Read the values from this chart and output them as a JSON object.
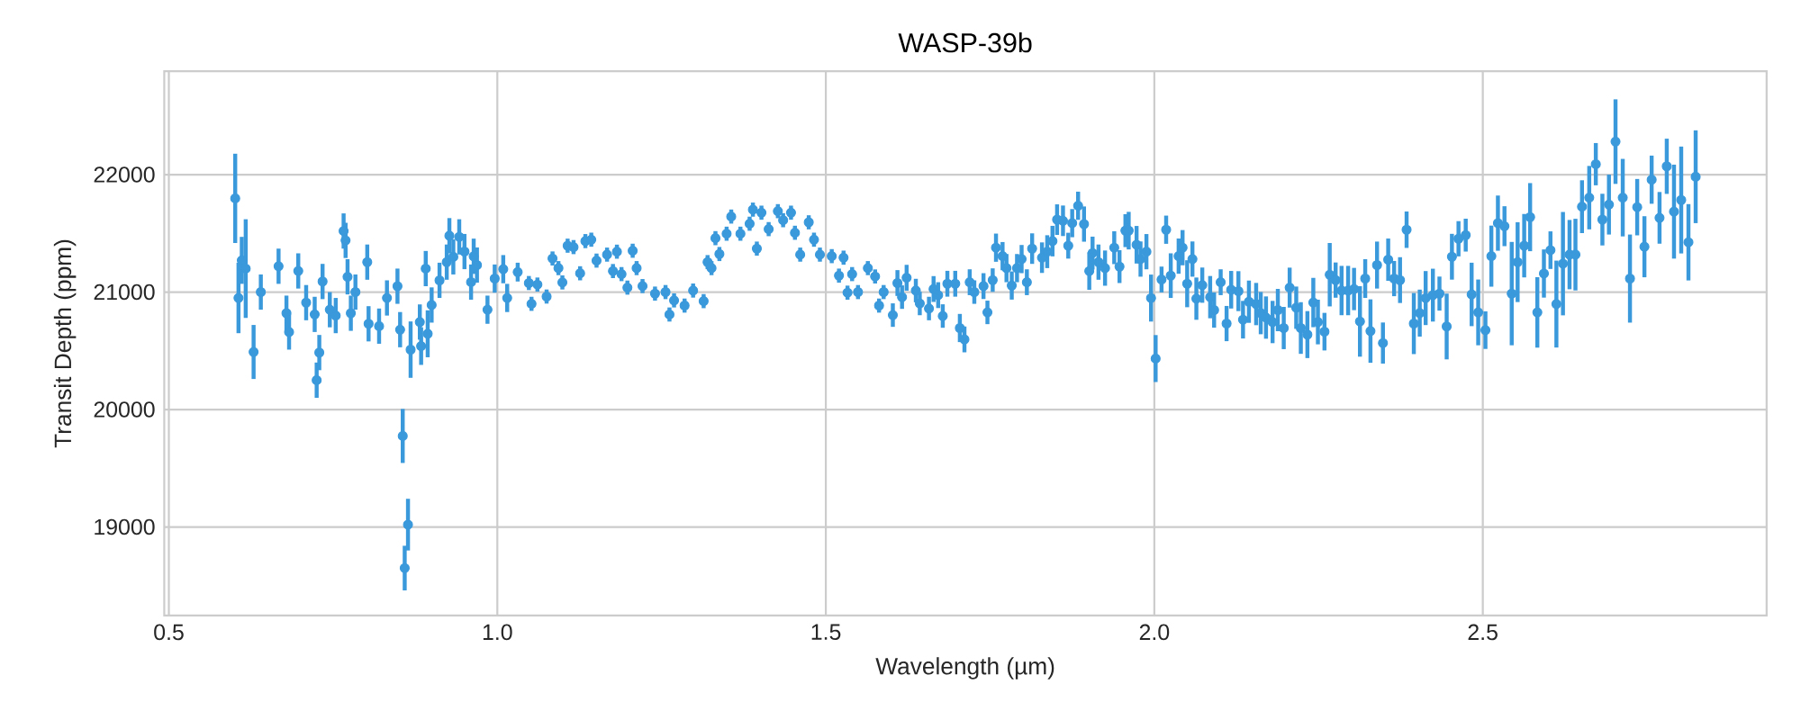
{
  "chart_data": {
    "type": "scatter",
    "title": "WASP-39b",
    "xlabel": "Wavelength (µm)",
    "ylabel": "Transit Depth (ppm)",
    "xlim": [
      0.493,
      2.932
    ],
    "ylim": [
      18247,
      22880
    ],
    "xticks": [
      {
        "value": 0.5,
        "label": "0.5"
      },
      {
        "value": 1,
        "label": "1.0"
      },
      {
        "value": 1.5,
        "label": "1.5"
      },
      {
        "value": 2,
        "label": "2.0"
      },
      {
        "value": 2.5,
        "label": "2.5"
      }
    ],
    "yticks": [
      19000,
      20000,
      21000,
      22000
    ],
    "grid": true,
    "marker": "circle",
    "color": "#3a99db",
    "x": [
      0.601,
      0.606,
      0.611,
      0.617,
      0.629,
      0.64,
      0.667,
      0.679,
      0.683,
      0.697,
      0.709,
      0.722,
      0.725,
      0.729,
      0.734,
      0.745,
      0.754,
      0.766,
      0.769,
      0.772,
      0.777,
      0.784,
      0.802,
      0.804,
      0.82,
      0.832,
      0.848,
      0.852,
      0.856,
      0.859,
      0.864,
      0.868,
      0.882,
      0.884,
      0.891,
      0.894,
      0.9,
      0.912,
      0.923,
      0.927,
      0.933,
      0.942,
      0.95,
      0.96,
      0.964,
      0.969,
      0.985,
      0.996,
      1.009,
      1.015,
      1.031,
      1.048,
      1.052,
      1.061,
      1.075,
      1.084,
      1.093,
      1.099,
      1.107,
      1.116,
      1.126,
      1.134,
      1.143,
      1.151,
      1.167,
      1.176,
      1.182,
      1.189,
      1.198,
      1.206,
      1.212,
      1.221,
      1.24,
      1.256,
      1.262,
      1.269,
      1.285,
      1.298,
      1.314,
      1.32,
      1.326,
      1.332,
      1.338,
      1.349,
      1.356,
      1.37,
      1.384,
      1.389,
      1.395,
      1.402,
      1.413,
      1.427,
      1.435,
      1.447,
      1.453,
      1.461,
      1.474,
      1.482,
      1.491,
      1.509,
      1.52,
      1.527,
      1.533,
      1.54,
      1.549,
      1.564,
      1.575,
      1.581,
      1.588,
      1.602,
      1.609,
      1.616,
      1.623,
      1.637,
      1.643,
      1.657,
      1.664,
      1.671,
      1.678,
      1.685,
      1.697,
      1.704,
      1.711,
      1.719,
      1.726,
      1.74,
      1.746,
      1.754,
      1.759,
      1.769,
      1.775,
      1.783,
      1.791,
      1.798,
      1.806,
      1.814,
      1.829,
      1.837,
      1.845,
      1.852,
      1.861,
      1.869,
      1.875,
      1.884,
      1.893,
      1.901,
      1.906,
      1.915,
      1.925,
      1.939,
      1.947,
      1.956,
      1.961,
      1.973,
      1.979,
      1.988,
      1.995,
      2.002,
      2.011,
      2.018,
      2.025,
      2.037,
      2.043,
      2.05,
      2.058,
      2.064,
      2.073,
      2.085,
      2.091,
      2.101,
      2.11,
      2.117,
      2.128,
      2.135,
      2.144,
      2.155,
      2.162,
      2.17,
      2.18,
      2.188,
      2.197,
      2.206,
      2.216,
      2.223,
      2.233,
      2.242,
      2.249,
      2.259,
      2.267,
      2.276,
      2.285,
      2.295,
      2.304,
      2.313,
      2.321,
      2.329,
      2.339,
      2.348,
      2.356,
      2.365,
      2.374,
      2.384,
      2.395,
      2.404,
      2.413,
      2.424,
      2.434,
      2.445,
      2.453,
      2.463,
      2.474,
      2.483,
      2.493,
      2.504,
      2.513,
      2.523,
      2.533,
      2.544,
      2.553,
      2.563,
      2.572,
      2.583,
      2.593,
      2.603,
      2.612,
      2.622,
      2.632,
      2.641,
      2.651,
      2.662,
      2.672,
      2.682,
      2.692,
      2.702,
      2.713,
      2.724,
      2.735,
      2.746,
      2.757,
      2.769,
      2.78,
      2.791,
      2.802,
      2.813,
      2.824
    ],
    "values": [
      21798,
      20950,
      21270,
      21200,
      20490,
      21000,
      21220,
      20820,
      20660,
      21180,
      20910,
      20810,
      20250,
      20485,
      21090,
      20850,
      20800,
      21520,
      21440,
      21130,
      20820,
      21000,
      21255,
      20730,
      20710,
      20950,
      21050,
      20680,
      19775,
      18650,
      19020,
      20510,
      20745,
      20540,
      21200,
      20645,
      20890,
      21100,
      21255,
      21480,
      21300,
      21470,
      21345,
      21085,
      21305,
      21230,
      20850,
      21115,
      21195,
      20950,
      21170,
      21077,
      20900,
      21064,
      20962,
      21286,
      21204,
      21082,
      21395,
      21383,
      21160,
      21434,
      21446,
      21268,
      21319,
      21179,
      21344,
      21153,
      21038,
      21352,
      21204,
      21051,
      20987,
      21000,
      20809,
      20929,
      20885,
      21013,
      20923,
      21255,
      21204,
      21459,
      21324,
      21497,
      21643,
      21497,
      21582,
      21702,
      21370,
      21676,
      21536,
      21689,
      21612,
      21676,
      21505,
      21319,
      21594,
      21446,
      21319,
      21306,
      21140,
      21293,
      20995,
      21153,
      21000,
      21204,
      21133,
      20885,
      21000,
      20804,
      21077,
      20957,
      21122,
      21013,
      20903,
      20860,
      21026,
      20974,
      20796,
      21071,
      21071,
      20694,
      20597,
      21084,
      21000,
      21051,
      20827,
      21102,
      21378,
      21306,
      21204,
      21056,
      21204,
      21281,
      21084,
      21370,
      21293,
      21344,
      21434,
      21617,
      21607,
      21395,
      21587,
      21735,
      21579,
      21179,
      21332,
      21255,
      21204,
      21378,
      21217,
      21523,
      21523,
      21403,
      21281,
      21344,
      20949,
      20434,
      21107,
      21531,
      21140,
      21306,
      21378,
      21071,
      21281,
      20944,
      21059,
      20957,
      20847,
      21084,
      20732,
      21020,
      21008,
      20765,
      20918,
      20898,
      20821,
      20783,
      20745,
      20847,
      20694,
      21038,
      20867,
      20694,
      20638,
      20911,
      20745,
      20663,
      21148,
      21102,
      21013,
      21013,
      21026,
      20750,
      21115,
      20668,
      21230,
      20566,
      21276,
      21115,
      21102,
      21531,
      20732,
      20821,
      20949,
      20974,
      20987,
      20707,
      21301,
      21454,
      21485,
      20980,
      20827,
      20676,
      21306,
      21587,
      21561,
      20987,
      21255,
      21395,
      21638,
      20827,
      21158,
      21357,
      20898,
      21242,
      21319,
      21319,
      21727,
      21804,
      22089,
      21617,
      21745,
      22281,
      21804,
      21115,
      21723,
      21386,
      21957,
      21632,
      22071,
      21685,
      21784,
      21424,
      21982
    ],
    "errors": [
      380,
      300,
      200,
      420,
      230,
      150,
      150,
      150,
      150,
      150,
      150,
      150,
      150,
      150,
      150,
      150,
      150,
      150,
      150,
      150,
      150,
      150,
      150,
      150,
      150,
      150,
      150,
      150,
      230,
      190,
      220,
      240,
      150,
      160,
      150,
      200,
      150,
      150,
      150,
      150,
      150,
      150,
      150,
      150,
      150,
      150,
      120,
      120,
      120,
      120,
      80,
      60,
      60,
      60,
      60,
      60,
      60,
      60,
      60,
      60,
      60,
      60,
      60,
      60,
      60,
      60,
      60,
      60,
      60,
      60,
      60,
      60,
      60,
      60,
      60,
      60,
      60,
      60,
      60,
      60,
      60,
      60,
      60,
      60,
      60,
      60,
      60,
      60,
      60,
      60,
      60,
      60,
      60,
      60,
      60,
      60,
      60,
      60,
      60,
      60,
      60,
      60,
      60,
      60,
      60,
      60,
      60,
      60,
      60,
      100,
      110,
      100,
      110,
      100,
      100,
      100,
      110,
      110,
      100,
      110,
      110,
      120,
      110,
      110,
      100,
      110,
      100,
      100,
      120,
      120,
      120,
      120,
      120,
      120,
      110,
      130,
      130,
      140,
      130,
      130,
      130,
      110,
      120,
      120,
      150,
      160,
      140,
      150,
      150,
      140,
      140,
      140,
      160,
      160,
      150,
      150,
      200,
      200,
      110,
      120,
      190,
      150,
      150,
      200,
      150,
      180,
      150,
      180,
      150,
      110,
      150,
      160,
      170,
      160,
      180,
      180,
      180,
      180,
      180,
      180,
      180,
      170,
      180,
      220,
      200,
      210,
      190,
      160,
      270,
      150,
      210,
      210,
      180,
      300,
      165,
      270,
      200,
      175,
      180,
      150,
      195,
      155,
      260,
      200,
      230,
      225,
      145,
      280,
      195,
      150,
      140,
      270,
      280,
      160,
      260,
      235,
      170,
      440,
      340,
      270,
      290,
      300,
      205,
      160,
      370,
      440,
      295,
      305,
      225,
      270,
      180,
      220,
      255,
      360,
      330,
      375,
      240,
      260,
      205,
      220,
      235,
      400,
      455,
      325,
      395
    ]
  }
}
